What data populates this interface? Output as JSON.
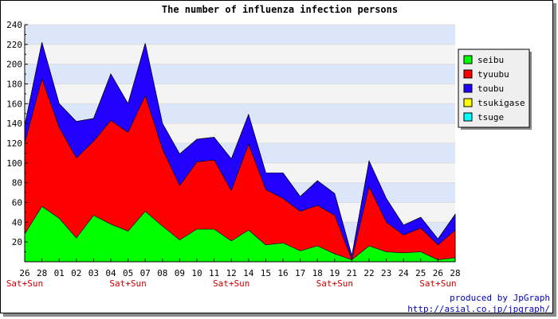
{
  "chart_data": {
    "type": "area",
    "stacked": true,
    "title": "The number of influenza infection persons",
    "xlabel": "",
    "ylabel": "",
    "ylim": [
      0,
      240
    ],
    "y_ticks": [
      20,
      40,
      60,
      80,
      100,
      120,
      140,
      160,
      180,
      200,
      220,
      240
    ],
    "grid": true,
    "legend_position": "top-right",
    "categories": [
      "26",
      "28",
      "01",
      "02",
      "03",
      "04",
      "05",
      "07",
      "08",
      "09",
      "10",
      "11",
      "12",
      "14",
      "15",
      "16",
      "17",
      "18",
      "19",
      "21",
      "22",
      "23",
      "24",
      "25",
      "26",
      "28"
    ],
    "weekend_label": "Sat+Sun",
    "weekend_indices": [
      0,
      6,
      12,
      18,
      24
    ],
    "series": [
      {
        "name": "seibu",
        "color": "#00ff00",
        "values": [
          28,
          56,
          44,
          24,
          47,
          38,
          31,
          51,
          36,
          22,
          33,
          33,
          21,
          32,
          17,
          19,
          11,
          16,
          8,
          2,
          16,
          10,
          9,
          10,
          2,
          4
        ]
      },
      {
        "name": "tyuubu",
        "color": "#ff0000",
        "values": [
          92,
          129,
          92,
          81,
          75,
          105,
          100,
          117,
          78,
          55,
          68,
          70,
          51,
          87,
          56,
          45,
          40,
          41,
          39,
          0,
          60,
          30,
          18,
          24,
          15,
          28
        ]
      },
      {
        "name": "toubu",
        "color": "#2200ff",
        "values": [
          18,
          37,
          24,
          37,
          23,
          47,
          29,
          53,
          26,
          32,
          23,
          23,
          32,
          30,
          17,
          26,
          15,
          25,
          22,
          4,
          26,
          24,
          10,
          11,
          6,
          16
        ]
      },
      {
        "name": "tsukigase",
        "color": "#ffff00",
        "values": [
          0,
          0,
          0,
          0,
          0,
          0,
          0,
          0,
          0,
          0,
          0,
          0,
          0,
          0,
          0,
          0,
          0,
          0,
          0,
          0,
          0,
          0,
          0,
          0,
          0,
          0
        ]
      },
      {
        "name": "tsuge",
        "color": "#00ffff",
        "values": [
          0,
          0,
          0,
          0,
          0,
          0,
          0,
          0,
          0,
          0,
          0,
          0,
          0,
          0,
          0,
          0,
          0,
          0,
          0,
          0,
          0,
          0,
          0,
          0,
          0,
          0
        ]
      }
    ]
  },
  "credits": {
    "line1": "produced by JpGraph",
    "line2": "http://asial.co.jp/jpgraph/"
  }
}
